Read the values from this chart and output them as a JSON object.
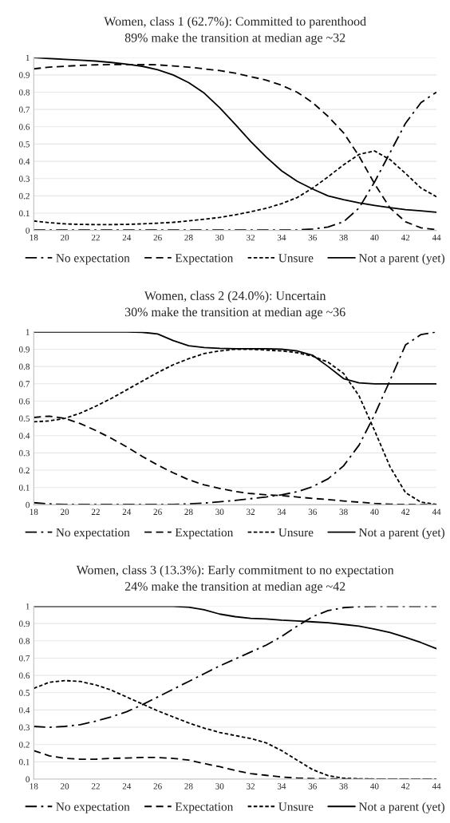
{
  "chart_data": [
    {
      "type": "line",
      "title": "Women, class 1 (62.7%): Committed to parenthood",
      "subtitle": "89% make the transition at median age ~32",
      "x": [
        18,
        19,
        20,
        21,
        22,
        23,
        24,
        25,
        26,
        27,
        28,
        29,
        30,
        31,
        32,
        33,
        34,
        35,
        36,
        37,
        38,
        39,
        40,
        41,
        42,
        43,
        44
      ],
      "series": [
        {
          "name": "No expectation",
          "color": "#000000",
          "line_style": "dashdot",
          "values": [
            0.003,
            0.003,
            0.003,
            0.003,
            0.003,
            0.003,
            0.003,
            0.003,
            0.003,
            0.003,
            0.003,
            0.003,
            0.003,
            0.003,
            0.003,
            0.003,
            0.003,
            0.003,
            0.008,
            0.02,
            0.05,
            0.13,
            0.28,
            0.45,
            0.62,
            0.74,
            0.8
          ]
        },
        {
          "name": "Expectation",
          "color": "#000000",
          "line_style": "dashed",
          "values": [
            0.935,
            0.945,
            0.95,
            0.955,
            0.958,
            0.96,
            0.96,
            0.96,
            0.958,
            0.952,
            0.945,
            0.935,
            0.925,
            0.91,
            0.89,
            0.87,
            0.84,
            0.8,
            0.74,
            0.66,
            0.565,
            0.43,
            0.27,
            0.13,
            0.05,
            0.015,
            0.005
          ]
        },
        {
          "name": "Unsure",
          "color": "#000000",
          "line_style": "dotted",
          "values": [
            0.055,
            0.045,
            0.038,
            0.035,
            0.034,
            0.034,
            0.035,
            0.038,
            0.042,
            0.047,
            0.055,
            0.065,
            0.075,
            0.09,
            0.108,
            0.128,
            0.155,
            0.19,
            0.245,
            0.31,
            0.38,
            0.44,
            0.46,
            0.41,
            0.33,
            0.245,
            0.195
          ]
        },
        {
          "name": "Not a parent (yet)",
          "color": "#000000",
          "line_style": "solid",
          "values": [
            1.0,
            0.995,
            0.99,
            0.985,
            0.98,
            0.972,
            0.962,
            0.95,
            0.93,
            0.9,
            0.855,
            0.795,
            0.71,
            0.615,
            0.515,
            0.425,
            0.345,
            0.285,
            0.24,
            0.2,
            0.178,
            0.16,
            0.145,
            0.132,
            0.12,
            0.113,
            0.105
          ]
        }
      ],
      "xlim": [
        18,
        44
      ],
      "xticks": [
        18,
        20,
        22,
        24,
        26,
        28,
        30,
        32,
        34,
        36,
        38,
        40,
        42,
        44
      ],
      "ylim": [
        0,
        1
      ],
      "yticks": [
        0,
        0.1,
        0.2,
        0.3,
        0.4,
        0.5,
        0.6,
        0.7,
        0.8,
        0.9,
        1
      ],
      "grid": "y",
      "legend": "bottom"
    },
    {
      "type": "line",
      "title": "Women, class 2 (24.0%): Uncertain",
      "subtitle": "30% make the transition at median age ~36",
      "x": [
        18,
        19,
        20,
        21,
        22,
        23,
        24,
        25,
        26,
        27,
        28,
        29,
        30,
        31,
        32,
        33,
        34,
        35,
        36,
        37,
        38,
        39,
        40,
        41,
        42,
        43,
        44
      ],
      "series": [
        {
          "name": "No expectation",
          "color": "#000000",
          "line_style": "dashdot",
          "values": [
            0.012,
            0.005,
            0.002,
            0.002,
            0.002,
            0.002,
            0.002,
            0.002,
            0.002,
            0.002,
            0.005,
            0.01,
            0.017,
            0.025,
            0.035,
            0.045,
            0.058,
            0.075,
            0.105,
            0.15,
            0.225,
            0.345,
            0.52,
            0.72,
            0.925,
            0.985,
            1.0
          ]
        },
        {
          "name": "Expectation",
          "color": "#000000",
          "line_style": "dashed",
          "values": [
            0.505,
            0.513,
            0.5,
            0.47,
            0.43,
            0.385,
            0.335,
            0.28,
            0.23,
            0.185,
            0.145,
            0.115,
            0.095,
            0.077,
            0.065,
            0.058,
            0.053,
            0.045,
            0.037,
            0.03,
            0.022,
            0.015,
            0.008,
            0.003,
            0.002,
            0.001,
            0.0
          ]
        },
        {
          "name": "Unsure",
          "color": "#000000",
          "line_style": "dotted",
          "values": [
            0.48,
            0.485,
            0.5,
            0.53,
            0.57,
            0.615,
            0.665,
            0.715,
            0.765,
            0.81,
            0.845,
            0.875,
            0.89,
            0.9,
            0.9,
            0.895,
            0.89,
            0.88,
            0.86,
            0.825,
            0.76,
            0.63,
            0.43,
            0.22,
            0.07,
            0.015,
            0.002
          ]
        },
        {
          "name": "Not a parent (yet)",
          "color": "#000000",
          "line_style": "solid",
          "values": [
            1.0,
            1.0,
            1.0,
            1.0,
            1.0,
            1.0,
            1.0,
            0.998,
            0.988,
            0.95,
            0.92,
            0.91,
            0.905,
            0.903,
            0.903,
            0.903,
            0.9,
            0.89,
            0.865,
            0.8,
            0.73,
            0.705,
            0.7,
            0.7,
            0.7,
            0.7,
            0.7
          ]
        }
      ],
      "xlim": [
        18,
        44
      ],
      "xticks": [
        18,
        20,
        22,
        24,
        26,
        28,
        30,
        32,
        34,
        36,
        38,
        40,
        42,
        44
      ],
      "ylim": [
        0,
        1
      ],
      "yticks": [
        0,
        0.1,
        0.2,
        0.3,
        0.4,
        0.5,
        0.6,
        0.7,
        0.8,
        0.9,
        1
      ],
      "grid": "y",
      "legend": "bottom"
    },
    {
      "type": "line",
      "title": "Women, class 3 (13.3%): Early commitment to no expectation",
      "subtitle": "24% make the transition at median age ~42",
      "x": [
        18,
        19,
        20,
        21,
        22,
        23,
        24,
        25,
        26,
        27,
        28,
        29,
        30,
        31,
        32,
        33,
        34,
        35,
        36,
        37,
        38,
        39,
        40,
        41,
        42,
        43,
        44
      ],
      "series": [
        {
          "name": "No expectation",
          "color": "#000000",
          "line_style": "dashdot",
          "values": [
            0.305,
            0.3,
            0.305,
            0.315,
            0.335,
            0.36,
            0.39,
            0.43,
            0.475,
            0.52,
            0.565,
            0.61,
            0.655,
            0.695,
            0.735,
            0.775,
            0.825,
            0.885,
            0.94,
            0.975,
            0.992,
            0.998,
            1.0,
            1.0,
            1.0,
            1.0,
            1.0
          ]
        },
        {
          "name": "Expectation",
          "color": "#000000",
          "line_style": "dashed",
          "values": [
            0.165,
            0.135,
            0.12,
            0.115,
            0.115,
            0.12,
            0.122,
            0.125,
            0.125,
            0.12,
            0.11,
            0.09,
            0.072,
            0.05,
            0.032,
            0.022,
            0.012,
            0.006,
            0.003,
            0.002,
            0.001,
            0.001,
            0.001,
            0.001,
            0.001,
            0.001,
            0.001
          ]
        },
        {
          "name": "Unsure",
          "color": "#000000",
          "line_style": "dotted",
          "values": [
            0.525,
            0.56,
            0.57,
            0.565,
            0.545,
            0.515,
            0.475,
            0.435,
            0.395,
            0.36,
            0.325,
            0.295,
            0.27,
            0.252,
            0.235,
            0.21,
            0.165,
            0.11,
            0.055,
            0.02,
            0.005,
            0.002,
            0.001,
            0.001,
            0.001,
            0.001,
            0.001
          ]
        },
        {
          "name": "Not a parent (yet)",
          "color": "#000000",
          "line_style": "solid",
          "values": [
            1.0,
            1.0,
            1.0,
            1.0,
            1.0,
            1.0,
            1.0,
            1.0,
            1.0,
            1.0,
            0.995,
            0.98,
            0.955,
            0.94,
            0.93,
            0.927,
            0.92,
            0.915,
            0.91,
            0.905,
            0.895,
            0.885,
            0.868,
            0.848,
            0.82,
            0.79,
            0.755
          ]
        }
      ],
      "xlim": [
        18,
        44
      ],
      "xticks": [
        18,
        20,
        22,
        24,
        26,
        28,
        30,
        32,
        34,
        36,
        38,
        40,
        42,
        44
      ],
      "ylim": [
        0,
        1
      ],
      "yticks": [
        0,
        0.1,
        0.2,
        0.3,
        0.4,
        0.5,
        0.6,
        0.7,
        0.8,
        0.9,
        1
      ],
      "grid": "y",
      "legend": "bottom"
    }
  ]
}
